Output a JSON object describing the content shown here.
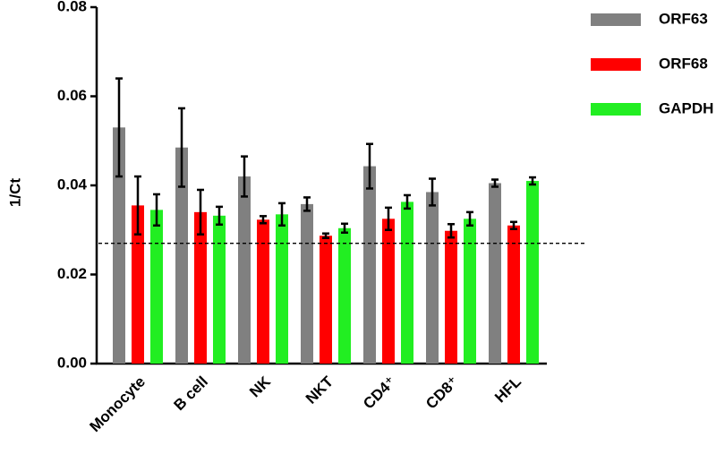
{
  "chart_data": {
    "type": "bar",
    "y_label": "1/Ct",
    "categories": [
      "Monocyte",
      "B cell",
      "NK",
      "NKT",
      "CD4⁺",
      "CD8⁺",
      "HFL"
    ],
    "series": [
      {
        "name": "ORF63",
        "color": "#808080",
        "values": [
          0.053,
          0.0485,
          0.042,
          0.0358,
          0.0443,
          0.0385,
          0.0405
        ],
        "errors": [
          0.011,
          0.0088,
          0.0045,
          0.0015,
          0.005,
          0.003,
          0.0008
        ]
      },
      {
        "name": "ORF68",
        "color": "#ff0000",
        "values": [
          0.0355,
          0.034,
          0.0323,
          0.0287,
          0.0325,
          0.0298,
          0.031
        ],
        "errors": [
          0.0065,
          0.005,
          0.0008,
          0.0005,
          0.0025,
          0.0015,
          0.0008
        ]
      },
      {
        "name": "GAPDH",
        "color": "#22ee22",
        "values": [
          0.0345,
          0.0332,
          0.0335,
          0.0304,
          0.0363,
          0.0325,
          0.041
        ],
        "errors": [
          0.0035,
          0.002,
          0.0025,
          0.001,
          0.0015,
          0.0015,
          0.0008
        ]
      }
    ],
    "reference_line": 0.027,
    "ylim": [
      0,
      0.08
    ],
    "yticks": [
      {
        "value": 0,
        "label": "0.00"
      },
      {
        "value": 0.02,
        "label": "0.02"
      },
      {
        "value": 0.04,
        "label": "0.04"
      },
      {
        "value": 0.06,
        "label": "0.06"
      },
      {
        "value": 0.08,
        "label": "0.08"
      }
    ],
    "grid": false,
    "legend": "top-right"
  }
}
